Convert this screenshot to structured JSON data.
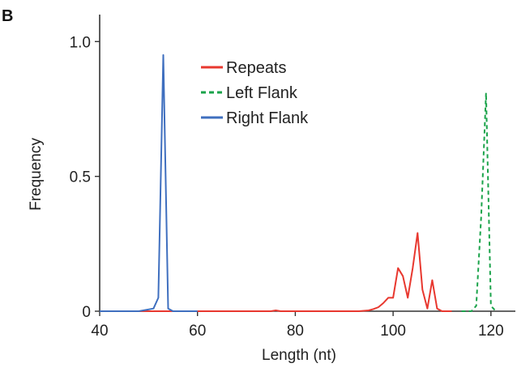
{
  "panel_label": "B",
  "chart_data": {
    "type": "line",
    "xlabel": "Length (nt)",
    "ylabel": "Frequency",
    "xlim": [
      40,
      125
    ],
    "ylim": [
      0,
      1.1
    ],
    "x_ticks": [
      40,
      60,
      80,
      100,
      120
    ],
    "x_tick_labels": [
      "40",
      "60",
      "80",
      "100",
      "120"
    ],
    "y_ticks": [
      0,
      0.5,
      1.0
    ],
    "y_tick_labels": [
      "0",
      "0.5",
      "1.0"
    ],
    "grid": false,
    "legend_position": "top-center",
    "series": [
      {
        "name": "Repeats",
        "color": "#e8382f",
        "style": "solid",
        "x": [
          40,
          45,
          50,
          55,
          60,
          65,
          70,
          75,
          76,
          77,
          80,
          85,
          90,
          93,
          95,
          96,
          97,
          98,
          99,
          100,
          101,
          102,
          103,
          104,
          105,
          106,
          107,
          108,
          109,
          110,
          112
        ],
        "y": [
          0,
          0,
          0,
          0,
          0,
          0,
          0,
          0,
          0.003,
          0,
          0,
          0,
          0,
          0,
          0.003,
          0.008,
          0.015,
          0.03,
          0.05,
          0.05,
          0.16,
          0.13,
          0.05,
          0.16,
          0.29,
          0.08,
          0.01,
          0.115,
          0.01,
          0,
          0
        ]
      },
      {
        "name": "Left Flank",
        "color": "#1aa34a",
        "style": "dashed",
        "x": [
          114,
          116,
          117,
          118,
          119,
          120,
          121
        ],
        "y": [
          0,
          0,
          0.02,
          0.35,
          0.81,
          0.02,
          0
        ]
      },
      {
        "name": "Right Flank",
        "color": "#3f6fbf",
        "style": "solid",
        "x": [
          40,
          48,
          51,
          52,
          53,
          54,
          55,
          60
        ],
        "y": [
          0,
          0,
          0.01,
          0.05,
          0.95,
          0.01,
          0,
          0
        ]
      }
    ]
  }
}
